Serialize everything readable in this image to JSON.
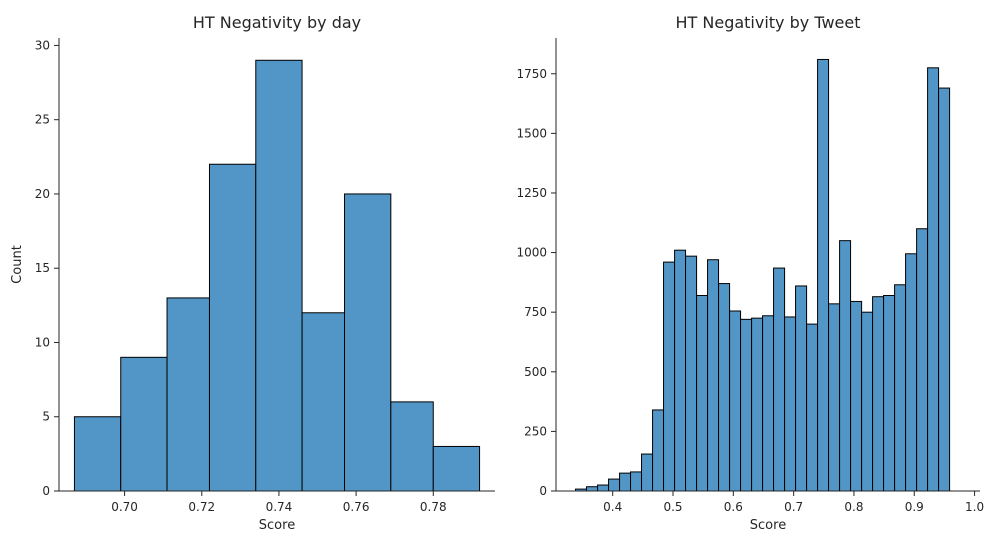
{
  "bar_color": "#5296c7",
  "edge_color": "#000000",
  "chart_data": [
    {
      "type": "bar",
      "title": "HT Negativity by day",
      "xlabel": "Score",
      "ylabel": "Count",
      "bin_edges": [
        0.687,
        0.699,
        0.711,
        0.722,
        0.734,
        0.746,
        0.757,
        0.769,
        0.78,
        0.792
      ],
      "values": [
        5,
        9,
        13,
        22,
        29,
        12,
        20,
        6,
        3
      ],
      "xlim": [
        0.683,
        0.796
      ],
      "ylim": [
        0,
        30.5
      ],
      "xticks": [
        0.7,
        0.72,
        0.74,
        0.76,
        0.78
      ],
      "xtick_labels": [
        "0.70",
        "0.72",
        "0.74",
        "0.76",
        "0.78"
      ],
      "yticks": [
        0,
        5,
        10,
        15,
        20,
        25,
        30
      ],
      "ytick_labels": [
        "0",
        "5",
        "10",
        "15",
        "20",
        "25",
        "30"
      ],
      "grid": false
    },
    {
      "type": "bar",
      "title": "HT Negativity by Tweet",
      "xlabel": "Score",
      "ylabel": "",
      "bin_edges": [
        0.3384,
        0.3566,
        0.3749,
        0.3931,
        0.4114,
        0.4296,
        0.4478,
        0.4661,
        0.4843,
        0.5026,
        0.5208,
        0.5391,
        0.5573,
        0.5755,
        0.5938,
        0.612,
        0.6303,
        0.6485,
        0.6667,
        0.685,
        0.7032,
        0.7215,
        0.7397,
        0.7579,
        0.7762,
        0.7944,
        0.8127,
        0.8309,
        0.8491,
        0.8674,
        0.8856,
        0.9039,
        0.9221,
        0.9403,
        0.9586,
        0.9768
      ],
      "values": [
        8,
        18,
        25,
        50,
        75,
        80,
        155,
        340,
        960,
        1010,
        985,
        820,
        970,
        870,
        755,
        720,
        725,
        735,
        935,
        730,
        860,
        700,
        1810,
        785,
        1050,
        795,
        750,
        815,
        820,
        865,
        995,
        1100,
        1775,
        1690,
        0
      ],
      "xlim": [
        0.306,
        1.009
      ],
      "ylim": [
        0,
        1900
      ],
      "xticks": [
        0.4,
        0.5,
        0.6,
        0.7,
        0.8,
        0.9,
        1.0
      ],
      "xtick_labels": [
        "0.4",
        "0.5",
        "0.6",
        "0.7",
        "0.8",
        "0.9",
        "1.0"
      ],
      "yticks": [
        0,
        250,
        500,
        750,
        1000,
        1250,
        1500,
        1750
      ],
      "ytick_labels": [
        "0",
        "250",
        "500",
        "750",
        "1000",
        "1250",
        "1500",
        "1750"
      ],
      "grid": false
    }
  ]
}
